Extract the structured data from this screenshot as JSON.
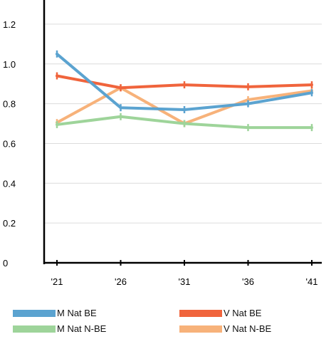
{
  "chart_data": {
    "type": "line",
    "categories": [
      "'21",
      "'26",
      "'31",
      "'36",
      "'41"
    ],
    "yticks": [
      "0",
      "0.2",
      "0.4",
      "0.6",
      "0.8",
      "1.0",
      "1.2"
    ],
    "ylim": [
      0,
      1.3
    ],
    "grid": true,
    "legend_position": "bottom",
    "series": [
      {
        "name": "M Nat BE",
        "color": "#5BA3D0",
        "values": [
          1.05,
          0.78,
          0.77,
          0.8,
          0.855
        ]
      },
      {
        "name": "V Nat BE",
        "color": "#F0643C",
        "values": [
          0.94,
          0.88,
          0.895,
          0.885,
          0.895
        ]
      },
      {
        "name": "M Nat N-BE",
        "color": "#9ED49A",
        "values": [
          0.695,
          0.735,
          0.7,
          0.68,
          0.68
        ]
      },
      {
        "name": "V Nat N-BE",
        "color": "#F7B27A",
        "values": [
          0.705,
          0.88,
          0.7,
          0.82,
          0.865
        ]
      }
    ]
  }
}
